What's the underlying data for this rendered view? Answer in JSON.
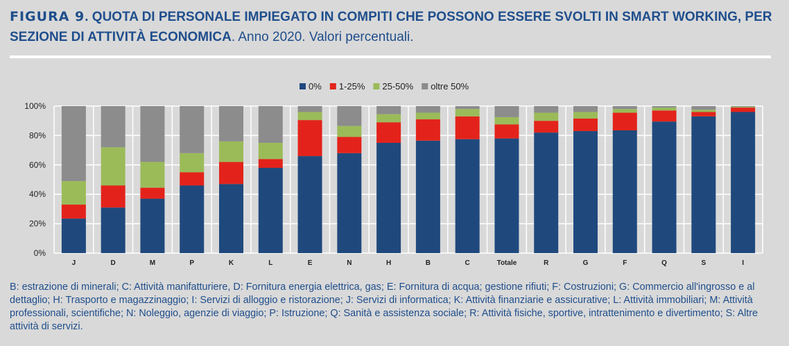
{
  "header": {
    "figure_label": "FIGURA 9",
    "title_bold": ". QUOTA DI PERSONALE IMPIEGATO IN COMPITI CHE POSSONO ESSERE SVOLTI IN SMART WORKING, PER SEZIONE DI ATTIVITÀ ECONOMICA",
    "title_normal": ". Anno 2020. Valori percentuali."
  },
  "footnote": "B: estrazione di minerali; C: Attività manifatturiere, D: Fornitura energia elettrica, gas; E: Fornitura di acqua; gestione rifiuti; F: Costruzioni; G: Commercio all'ingrosso e al dettaglio; H: Trasporto e magazzinaggio; I: Servizi di alloggio e ristorazione; J: Servizi di informatica; K: Attività finanziarie e assicurative; L: Attività immobiliari; M: Attività professionali, scientifiche; N: Noleggio, agenzie di viaggio; P: Istruzione; Q: Sanità e assistenza sociale; R: Attività fisiche, sportive, intrattenimento e divertimento; S: Altre attività di servizi.",
  "chart_data": {
    "type": "bar",
    "stacked": true,
    "title": "",
    "xlabel": "",
    "ylabel": "",
    "ylim": [
      0,
      100
    ],
    "yticks": [
      "0%",
      "20%",
      "40%",
      "60%",
      "80%",
      "100%"
    ],
    "legend_position": "top-center",
    "categories": [
      "J",
      "D",
      "M",
      "P",
      "K",
      "L",
      "E",
      "N",
      "H",
      "B",
      "C",
      "Totale",
      "R",
      "G",
      "F",
      "Q",
      "S",
      "I"
    ],
    "series": [
      {
        "name": "0%",
        "color": "#1f497d",
        "values": [
          23.5,
          31,
          37,
          46,
          47,
          58,
          66,
          68,
          75,
          76.5,
          77.5,
          78,
          82,
          83,
          83.5,
          89.5,
          93,
          96
        ]
      },
      {
        "name": "1-25%",
        "color": "#e3231b",
        "values": [
          9.5,
          15,
          7.5,
          9,
          15,
          6,
          24.5,
          11,
          14,
          14.5,
          15.5,
          9.5,
          8,
          8.5,
          12,
          7.5,
          3,
          3
        ]
      },
      {
        "name": "25-50%",
        "color": "#9bbb59",
        "values": [
          16,
          26,
          17.5,
          13,
          14,
          11,
          5.5,
          7.5,
          5.5,
          4.5,
          5,
          5,
          5.5,
          4.5,
          2.5,
          2,
          1.5,
          0.5
        ]
      },
      {
        "name": "oltre 50%",
        "color": "#8c8c8c",
        "values": [
          51,
          28,
          38,
          32,
          24,
          25,
          4,
          13.5,
          5.5,
          4.5,
          2,
          7.5,
          4.5,
          4,
          2,
          1,
          2.5,
          0.5
        ]
      }
    ]
  }
}
